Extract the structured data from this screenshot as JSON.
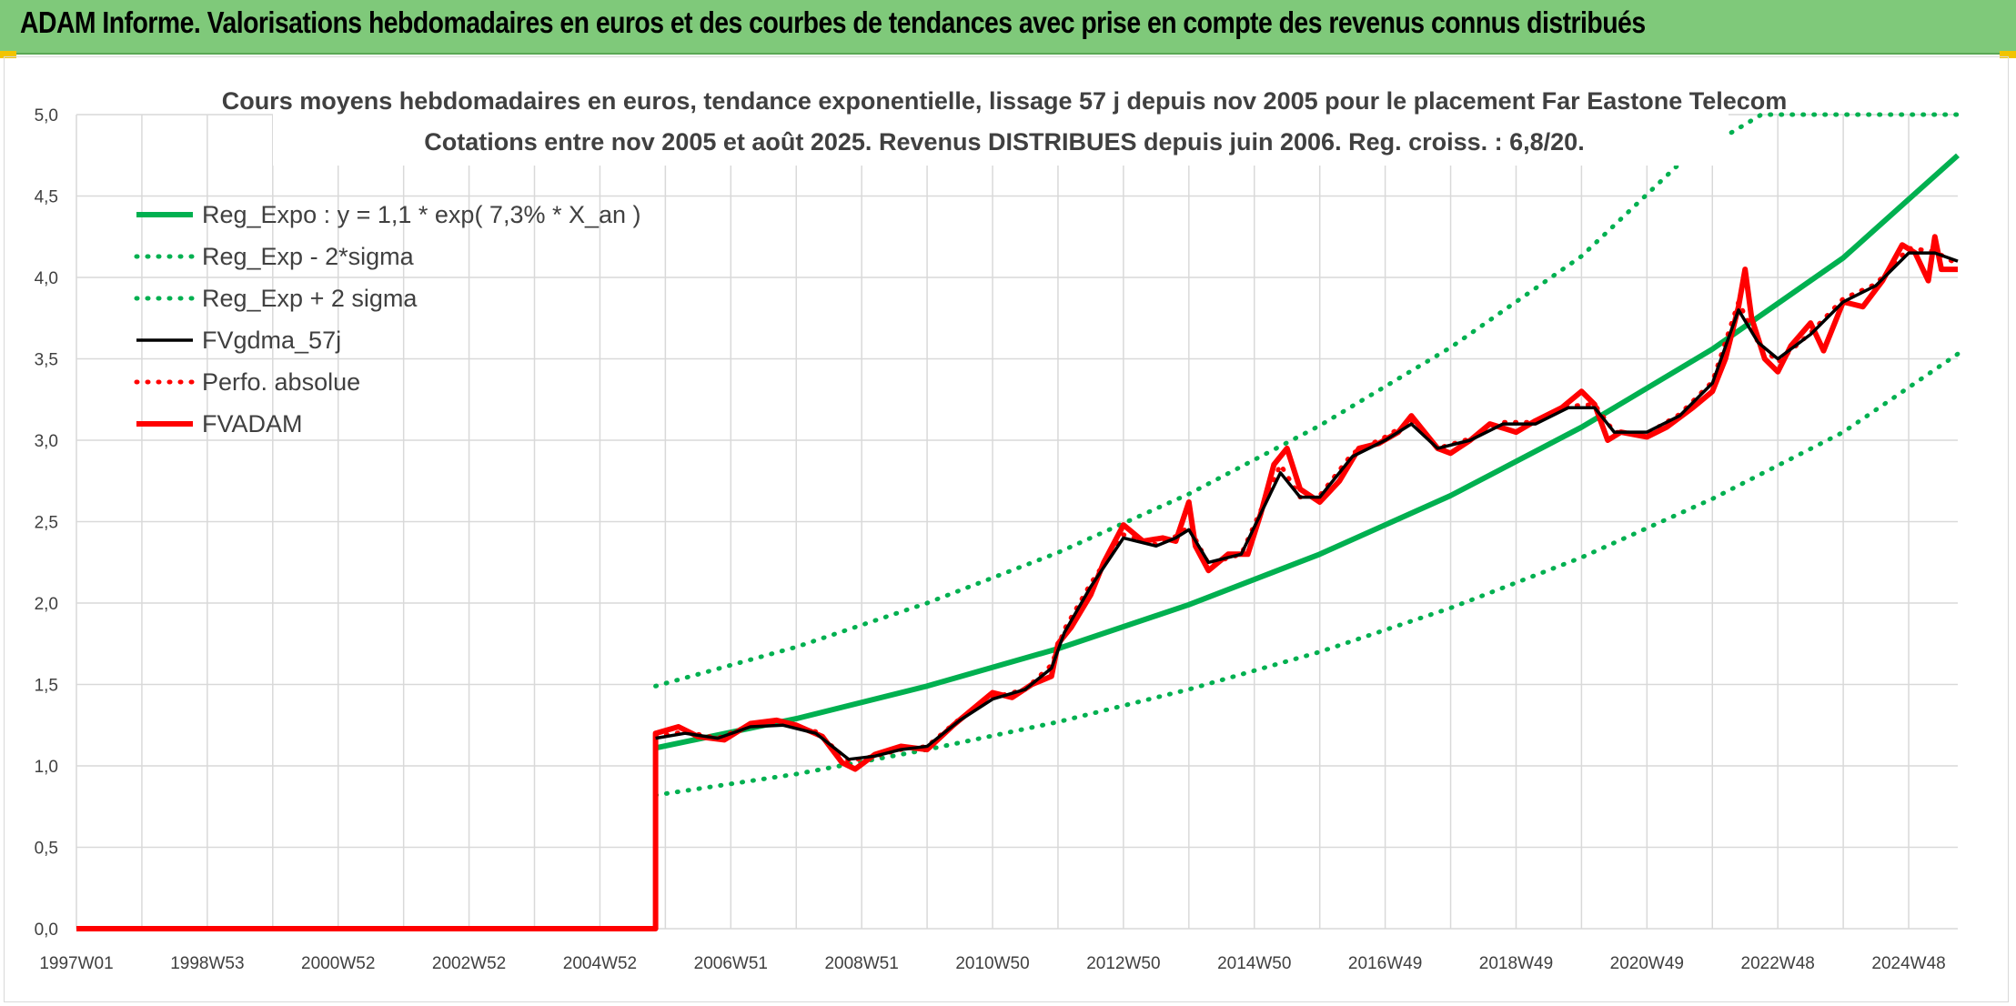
{
  "banner": {
    "title": "ADAM Informe. Valorisations hebdomadaires en euros et des courbes de tendances avec prise en compte des revenus connus distribués"
  },
  "colors": {
    "banner_bg": "#7fc97a",
    "green": "#00b050",
    "red": "#ff0000",
    "black": "#000000",
    "grid": "#d9d9d9"
  },
  "chart_data": {
    "type": "line",
    "title_lines": [
      "Cours moyens hebdomadaires en euros, tendance exponentielle, lissage 57 j depuis nov 2005 pour le placement Far Eastone Telecom",
      "Cotations entre nov 2005 et août 2025. Revenus DISTRIBUES depuis juin 2006. Reg. croiss. : 6,8/20."
    ],
    "ylim": [
      0,
      5
    ],
    "y_ticks": [
      "0,0",
      "0,5",
      "1,0",
      "1,5",
      "2,0",
      "2,5",
      "3,0",
      "3,5",
      "4,0",
      "4,5",
      "5,0"
    ],
    "x_range": [
      1997.0,
      2025.75
    ],
    "x_ticks": [
      {
        "label": "1997W01",
        "x": 1997.0
      },
      {
        "label": "1998W53",
        "x": 1999.0
      },
      {
        "label": "2000W52",
        "x": 2001.0
      },
      {
        "label": "2002W52",
        "x": 2003.0
      },
      {
        "label": "2004W52",
        "x": 2005.0
      },
      {
        "label": "2006W51",
        "x": 2007.0
      },
      {
        "label": "2008W51",
        "x": 2009.0
      },
      {
        "label": "2010W50",
        "x": 2011.0
      },
      {
        "label": "2012W50",
        "x": 2013.0
      },
      {
        "label": "2014W50",
        "x": 2015.0
      },
      {
        "label": "2016W49",
        "x": 2017.0
      },
      {
        "label": "2018W49",
        "x": 2019.0
      },
      {
        "label": "2020W49",
        "x": 2021.0
      },
      {
        "label": "2022W48",
        "x": 2023.0
      },
      {
        "label": "2024W48",
        "x": 2025.0
      }
    ],
    "grid": true,
    "legend_position": "top-left",
    "series": [
      {
        "name": "Reg_Expo : y = 1,1 * exp( 7,3% *  X_an )",
        "style": "solid",
        "color": "#00b050",
        "points": [
          [
            2005.85,
            1.11
          ],
          [
            2008.0,
            1.29
          ],
          [
            2010.0,
            1.49
          ],
          [
            2012.0,
            1.72
          ],
          [
            2014.0,
            1.99
          ],
          [
            2016.0,
            2.3
          ],
          [
            2018.0,
            2.66
          ],
          [
            2020.0,
            3.08
          ],
          [
            2022.0,
            3.56
          ],
          [
            2024.0,
            4.12
          ],
          [
            2025.75,
            4.75
          ]
        ]
      },
      {
        "name": "Reg_Exp - 2*sigma",
        "style": "dotted",
        "color": "#00b050",
        "points": [
          [
            2005.85,
            0.82
          ],
          [
            2008.0,
            0.95
          ],
          [
            2010.0,
            1.1
          ],
          [
            2012.0,
            1.27
          ],
          [
            2014.0,
            1.47
          ],
          [
            2016.0,
            1.7
          ],
          [
            2018.0,
            1.97
          ],
          [
            2020.0,
            2.28
          ],
          [
            2022.0,
            2.64
          ],
          [
            2024.0,
            3.05
          ],
          [
            2025.75,
            3.53
          ]
        ]
      },
      {
        "name": "Reg_Exp + 2 sigma",
        "style": "dotted",
        "color": "#00b050",
        "points": [
          [
            2005.85,
            1.49
          ],
          [
            2008.0,
            1.73
          ],
          [
            2010.0,
            2.0
          ],
          [
            2012.0,
            2.31
          ],
          [
            2014.0,
            2.67
          ],
          [
            2016.0,
            3.09
          ],
          [
            2018.0,
            3.57
          ],
          [
            2020.0,
            4.13
          ],
          [
            2021.5,
            4.7
          ],
          [
            2022.75,
            5.0
          ],
          [
            2025.75,
            5.0
          ]
        ]
      },
      {
        "name": "FVgdma_57j",
        "style": "solid",
        "color": "#000000",
        "points": [
          [
            2005.85,
            1.17
          ],
          [
            2006.3,
            1.2
          ],
          [
            2006.8,
            1.17
          ],
          [
            2007.3,
            1.24
          ],
          [
            2007.8,
            1.25
          ],
          [
            2008.3,
            1.2
          ],
          [
            2008.8,
            1.04
          ],
          [
            2009.2,
            1.06
          ],
          [
            2009.6,
            1.1
          ],
          [
            2010.0,
            1.12
          ],
          [
            2010.5,
            1.28
          ],
          [
            2011.0,
            1.41
          ],
          [
            2011.5,
            1.47
          ],
          [
            2011.9,
            1.6
          ],
          [
            2012.1,
            1.82
          ],
          [
            2012.5,
            2.1
          ],
          [
            2013.0,
            2.4
          ],
          [
            2013.5,
            2.35
          ],
          [
            2013.8,
            2.4
          ],
          [
            2014.0,
            2.45
          ],
          [
            2014.3,
            2.25
          ],
          [
            2014.8,
            2.3
          ],
          [
            2015.1,
            2.55
          ],
          [
            2015.4,
            2.8
          ],
          [
            2015.7,
            2.65
          ],
          [
            2016.0,
            2.65
          ],
          [
            2016.5,
            2.9
          ],
          [
            2017.0,
            3.0
          ],
          [
            2017.4,
            3.1
          ],
          [
            2017.8,
            2.95
          ],
          [
            2018.3,
            3.0
          ],
          [
            2018.8,
            3.1
          ],
          [
            2019.3,
            3.1
          ],
          [
            2019.8,
            3.2
          ],
          [
            2020.2,
            3.2
          ],
          [
            2020.5,
            3.05
          ],
          [
            2021.0,
            3.05
          ],
          [
            2021.5,
            3.15
          ],
          [
            2022.0,
            3.35
          ],
          [
            2022.4,
            3.8
          ],
          [
            2022.7,
            3.6
          ],
          [
            2023.0,
            3.5
          ],
          [
            2023.5,
            3.65
          ],
          [
            2024.0,
            3.85
          ],
          [
            2024.5,
            3.95
          ],
          [
            2025.0,
            4.15
          ],
          [
            2025.4,
            4.15
          ],
          [
            2025.75,
            4.1
          ]
        ]
      },
      {
        "name": "Perfo. absolue",
        "style": "dotted",
        "color": "#ff0000",
        "points": [
          [
            2005.85,
            1.18
          ],
          [
            2006.3,
            1.21
          ],
          [
            2006.8,
            1.17
          ],
          [
            2007.3,
            1.25
          ],
          [
            2007.8,
            1.26
          ],
          [
            2008.3,
            1.21
          ],
          [
            2008.8,
            1.03
          ],
          [
            2009.2,
            1.06
          ],
          [
            2009.6,
            1.1
          ],
          [
            2010.0,
            1.12
          ],
          [
            2010.5,
            1.29
          ],
          [
            2011.0,
            1.42
          ],
          [
            2011.5,
            1.47
          ],
          [
            2011.9,
            1.62
          ],
          [
            2012.1,
            1.84
          ],
          [
            2012.5,
            2.12
          ],
          [
            2013.0,
            2.42
          ],
          [
            2013.5,
            2.36
          ],
          [
            2013.8,
            2.41
          ],
          [
            2014.0,
            2.47
          ],
          [
            2014.3,
            2.24
          ],
          [
            2014.8,
            2.3
          ],
          [
            2015.1,
            2.57
          ],
          [
            2015.4,
            2.85
          ],
          [
            2015.7,
            2.65
          ],
          [
            2016.0,
            2.66
          ],
          [
            2016.5,
            2.92
          ],
          [
            2017.0,
            3.02
          ],
          [
            2017.4,
            3.12
          ],
          [
            2017.8,
            2.95
          ],
          [
            2018.3,
            3.01
          ],
          [
            2018.8,
            3.11
          ],
          [
            2019.3,
            3.11
          ],
          [
            2019.8,
            3.21
          ],
          [
            2020.2,
            3.22
          ],
          [
            2020.5,
            3.05
          ],
          [
            2021.0,
            3.04
          ],
          [
            2021.5,
            3.16
          ],
          [
            2022.0,
            3.36
          ],
          [
            2022.4,
            3.85
          ],
          [
            2022.7,
            3.6
          ],
          [
            2023.0,
            3.48
          ],
          [
            2023.5,
            3.66
          ],
          [
            2024.0,
            3.87
          ],
          [
            2024.5,
            3.96
          ],
          [
            2025.0,
            4.18
          ],
          [
            2025.4,
            4.16
          ],
          [
            2025.75,
            4.08
          ]
        ]
      },
      {
        "name": "FVADAM",
        "style": "solid",
        "color": "#ff0000",
        "points": [
          [
            1997.0,
            0.0
          ],
          [
            2005.85,
            0.0
          ],
          [
            2005.85,
            1.2
          ],
          [
            2006.2,
            1.24
          ],
          [
            2006.5,
            1.18
          ],
          [
            2006.9,
            1.16
          ],
          [
            2007.3,
            1.26
          ],
          [
            2007.7,
            1.28
          ],
          [
            2008.0,
            1.25
          ],
          [
            2008.4,
            1.18
          ],
          [
            2008.7,
            1.02
          ],
          [
            2008.9,
            0.98
          ],
          [
            2009.2,
            1.07
          ],
          [
            2009.6,
            1.12
          ],
          [
            2010.0,
            1.1
          ],
          [
            2010.4,
            1.25
          ],
          [
            2010.7,
            1.35
          ],
          [
            2011.0,
            1.45
          ],
          [
            2011.3,
            1.42
          ],
          [
            2011.6,
            1.5
          ],
          [
            2011.9,
            1.55
          ],
          [
            2012.0,
            1.75
          ],
          [
            2012.2,
            1.85
          ],
          [
            2012.5,
            2.05
          ],
          [
            2012.7,
            2.25
          ],
          [
            2013.0,
            2.48
          ],
          [
            2013.3,
            2.38
          ],
          [
            2013.6,
            2.4
          ],
          [
            2013.8,
            2.38
          ],
          [
            2014.0,
            2.62
          ],
          [
            2014.1,
            2.35
          ],
          [
            2014.3,
            2.2
          ],
          [
            2014.6,
            2.3
          ],
          [
            2014.9,
            2.3
          ],
          [
            2015.1,
            2.55
          ],
          [
            2015.3,
            2.85
          ],
          [
            2015.5,
            2.95
          ],
          [
            2015.7,
            2.7
          ],
          [
            2016.0,
            2.62
          ],
          [
            2016.3,
            2.75
          ],
          [
            2016.6,
            2.95
          ],
          [
            2016.9,
            2.98
          ],
          [
            2017.2,
            3.05
          ],
          [
            2017.4,
            3.15
          ],
          [
            2017.8,
            2.95
          ],
          [
            2018.0,
            2.92
          ],
          [
            2018.3,
            3.0
          ],
          [
            2018.6,
            3.1
          ],
          [
            2019.0,
            3.05
          ],
          [
            2019.3,
            3.12
          ],
          [
            2019.7,
            3.2
          ],
          [
            2020.0,
            3.3
          ],
          [
            2020.2,
            3.22
          ],
          [
            2020.4,
            3.0
          ],
          [
            2020.6,
            3.05
          ],
          [
            2021.0,
            3.02
          ],
          [
            2021.3,
            3.08
          ],
          [
            2021.7,
            3.2
          ],
          [
            2022.0,
            3.3
          ],
          [
            2022.2,
            3.5
          ],
          [
            2022.4,
            3.82
          ],
          [
            2022.5,
            4.05
          ],
          [
            2022.6,
            3.75
          ],
          [
            2022.8,
            3.5
          ],
          [
            2023.0,
            3.42
          ],
          [
            2023.2,
            3.58
          ],
          [
            2023.5,
            3.72
          ],
          [
            2023.7,
            3.55
          ],
          [
            2024.0,
            3.85
          ],
          [
            2024.3,
            3.82
          ],
          [
            2024.6,
            3.98
          ],
          [
            2024.9,
            4.2
          ],
          [
            2025.1,
            4.15
          ],
          [
            2025.3,
            3.98
          ],
          [
            2025.4,
            4.25
          ],
          [
            2025.5,
            4.05
          ],
          [
            2025.75,
            4.05
          ]
        ]
      }
    ]
  }
}
